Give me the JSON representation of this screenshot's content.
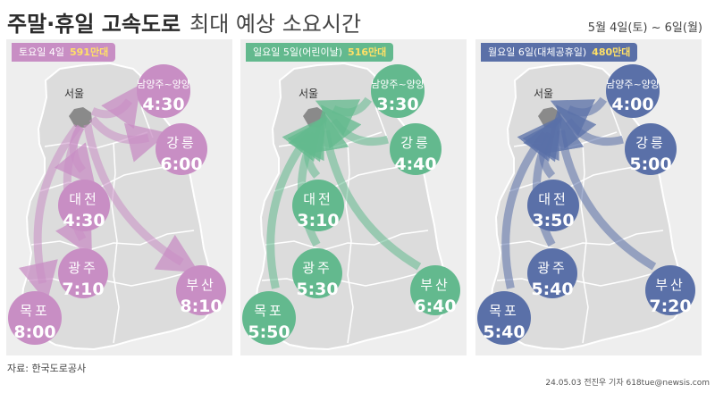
{
  "title": {
    "main": "주말·휴일 고속도로",
    "sub": "최대 예상 소요시간"
  },
  "date_range": "5월 4일(토) ~ 6일(월)",
  "source": "자료: 한국도로공사",
  "credit": "24.05.03 전진우 기자 618tue@newsis.com",
  "panels": [
    {
      "day": "토요일 4일",
      "volume": "591만대",
      "color": "#c88ec4",
      "tag_color": "#c88ec4",
      "vol_color": "#ffe066",
      "direction": "from_seoul",
      "seoul": "서울",
      "routes": [
        {
          "name": "남양주~양양",
          "time": "4:30"
        },
        {
          "name": "강릉",
          "time": "6:00"
        },
        {
          "name": "대전",
          "time": "4:30"
        },
        {
          "name": "광주",
          "time": "7:10"
        },
        {
          "name": "부산",
          "time": "8:10"
        },
        {
          "name": "목포",
          "time": "8:00"
        }
      ]
    },
    {
      "day": "일요일 5일(어린이날)",
      "volume": "516만대",
      "color": "#63b98e",
      "tag_color": "#63b98e",
      "vol_color": "#ffe066",
      "direction": "to_seoul",
      "seoul": "서울",
      "routes": [
        {
          "name": "남양주~양양",
          "time": "3:30"
        },
        {
          "name": "강릉",
          "time": "4:40"
        },
        {
          "name": "대전",
          "time": "3:10"
        },
        {
          "name": "광주",
          "time": "5:30"
        },
        {
          "name": "부산",
          "time": "6:40"
        },
        {
          "name": "목포",
          "time": "5:50"
        }
      ]
    },
    {
      "day": "월요일 6일(대체공휴일)",
      "volume": "480만대",
      "color": "#5a70a8",
      "tag_color": "#5a70a8",
      "vol_color": "#ffe066",
      "direction": "to_seoul",
      "seoul": "서울",
      "routes": [
        {
          "name": "남양주~양양",
          "time": "4:00"
        },
        {
          "name": "강릉",
          "time": "5:00"
        },
        {
          "name": "대전",
          "time": "3:50"
        },
        {
          "name": "광주",
          "time": "5:40"
        },
        {
          "name": "부산",
          "time": "7:20"
        },
        {
          "name": "목포",
          "time": "5:40"
        }
      ]
    }
  ]
}
